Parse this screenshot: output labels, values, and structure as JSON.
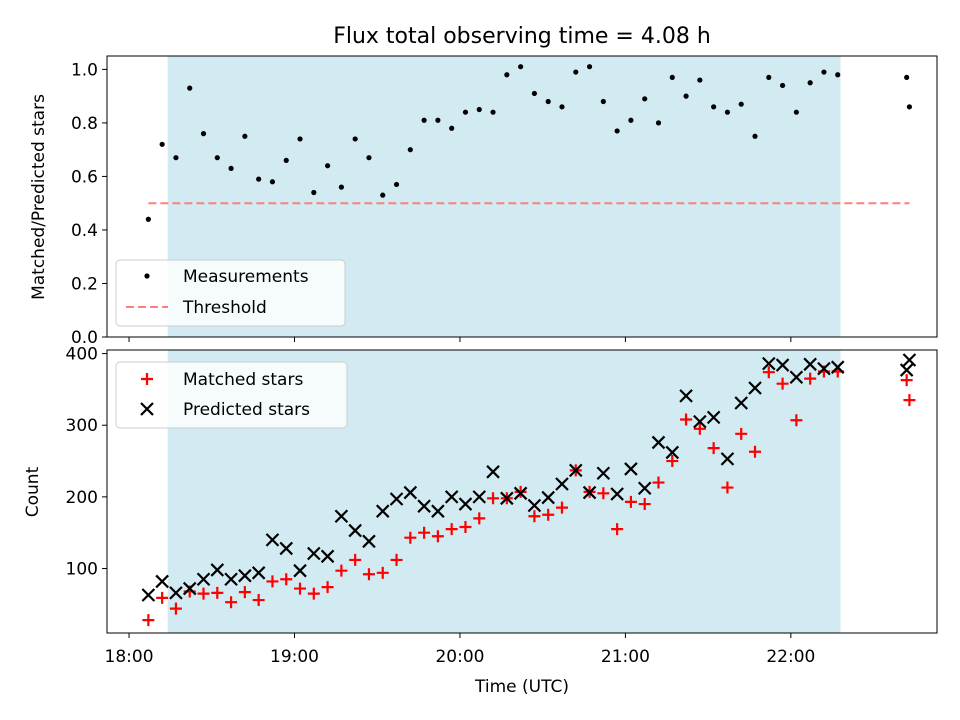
{
  "chart_data": [
    {
      "type": "scatter",
      "title": "Flux total observing time = 4.08 h",
      "ylabel": "Matched/Predicted stars",
      "ylim": [
        0,
        1.05
      ],
      "y_ticks": [
        0.0,
        0.2,
        0.4,
        0.6,
        0.8,
        1.0
      ],
      "y_tick_labels": [
        "0.0",
        "0.2",
        "0.4",
        "0.6",
        "0.8",
        "1.0"
      ],
      "legend": {
        "placement": "lower-left",
        "entries": [
          "Measurements",
          "Threshold"
        ]
      },
      "shaded_interval": [
        "18:14",
        "22:18"
      ],
      "series": [
        {
          "name": "Measurements",
          "color": "#000000",
          "marker": "dot",
          "points": [
            [
              "18:07",
              0.44
            ],
            [
              "18:12",
              0.72
            ],
            [
              "18:17",
              0.67
            ],
            [
              "18:22",
              0.93
            ],
            [
              "18:27",
              0.76
            ],
            [
              "18:32",
              0.67
            ],
            [
              "18:37",
              0.63
            ],
            [
              "18:42",
              0.75
            ],
            [
              "18:47",
              0.59
            ],
            [
              "18:52",
              0.58
            ],
            [
              "18:57",
              0.66
            ],
            [
              "19:02",
              0.74
            ],
            [
              "19:07",
              0.54
            ],
            [
              "19:12",
              0.64
            ],
            [
              "19:17",
              0.56
            ],
            [
              "19:22",
              0.74
            ],
            [
              "19:27",
              0.67
            ],
            [
              "19:32",
              0.53
            ],
            [
              "19:37",
              0.57
            ],
            [
              "19:42",
              0.7
            ],
            [
              "19:47",
              0.81
            ],
            [
              "19:52",
              0.81
            ],
            [
              "19:57",
              0.78
            ],
            [
              "20:02",
              0.84
            ],
            [
              "20:07",
              0.85
            ],
            [
              "20:12",
              0.84
            ],
            [
              "20:17",
              0.98
            ],
            [
              "20:22",
              1.01
            ],
            [
              "20:27",
              0.91
            ],
            [
              "20:32",
              0.88
            ],
            [
              "20:37",
              0.86
            ],
            [
              "20:42",
              0.99
            ],
            [
              "20:47",
              1.01
            ],
            [
              "20:52",
              0.88
            ],
            [
              "20:57",
              0.77
            ],
            [
              "21:02",
              0.81
            ],
            [
              "21:07",
              0.89
            ],
            [
              "21:12",
              0.8
            ],
            [
              "21:17",
              0.97
            ],
            [
              "21:22",
              0.9
            ],
            [
              "21:27",
              0.96
            ],
            [
              "21:32",
              0.86
            ],
            [
              "21:37",
              0.84
            ],
            [
              "21:42",
              0.87
            ],
            [
              "21:47",
              0.75
            ],
            [
              "21:52",
              0.97
            ],
            [
              "21:57",
              0.94
            ],
            [
              "22:02",
              0.84
            ],
            [
              "22:07",
              0.95
            ],
            [
              "22:12",
              0.99
            ],
            [
              "22:17",
              0.98
            ],
            [
              "22:42",
              0.97
            ],
            [
              "22:43",
              0.86
            ]
          ]
        },
        {
          "name": "Threshold",
          "color": "#ff7f7f",
          "style": "dashed",
          "points": [
            [
              "18:07",
              0.5
            ],
            [
              "22:43",
              0.5
            ]
          ]
        }
      ]
    },
    {
      "type": "scatter",
      "xlabel": "Time (UTC)",
      "ylabel": "Count",
      "ylim": [
        10,
        405
      ],
      "y_ticks": [
        100,
        200,
        300,
        400
      ],
      "y_tick_labels": [
        "100",
        "200",
        "300",
        "400"
      ],
      "x_ticks": [
        "18:00",
        "19:00",
        "20:00",
        "21:00",
        "22:00"
      ],
      "x_tick_labels": [
        "18:00",
        "19:00",
        "20:00",
        "21:00",
        "22:00"
      ],
      "xlim": [
        "17:52",
        "22:53"
      ],
      "legend": {
        "placement": "upper-left",
        "entries": [
          "Matched stars",
          "Predicted stars"
        ]
      },
      "shaded_interval": [
        "18:14",
        "22:18"
      ],
      "series": [
        {
          "name": "Matched stars",
          "color": "#ff0000",
          "marker": "plus",
          "points": [
            [
              "18:07",
              28
            ],
            [
              "18:12",
              59
            ],
            [
              "18:17",
              44
            ],
            [
              "18:22",
              68
            ],
            [
              "18:27",
              65
            ],
            [
              "18:32",
              66
            ],
            [
              "18:37",
              53
            ],
            [
              "18:42",
              67
            ],
            [
              "18:47",
              56
            ],
            [
              "18:52",
              82
            ],
            [
              "18:57",
              85
            ],
            [
              "19:02",
              72
            ],
            [
              "19:07",
              65
            ],
            [
              "19:12",
              74
            ],
            [
              "19:17",
              97
            ],
            [
              "19:22",
              112
            ],
            [
              "19:27",
              92
            ],
            [
              "19:32",
              94
            ],
            [
              "19:37",
              112
            ],
            [
              "19:42",
              143
            ],
            [
              "19:47",
              150
            ],
            [
              "19:52",
              145
            ],
            [
              "19:57",
              155
            ],
            [
              "20:02",
              158
            ],
            [
              "20:07",
              170
            ],
            [
              "20:12",
              198
            ],
            [
              "20:17",
              198
            ],
            [
              "20:22",
              207
            ],
            [
              "20:27",
              173
            ],
            [
              "20:32",
              175
            ],
            [
              "20:37",
              185
            ],
            [
              "20:42",
              237
            ],
            [
              "20:47",
              207
            ],
            [
              "20:52",
              205
            ],
            [
              "20:57",
              155
            ],
            [
              "21:02",
              193
            ],
            [
              "21:07",
              190
            ],
            [
              "21:12",
              220
            ],
            [
              "21:17",
              250
            ],
            [
              "21:22",
              308
            ],
            [
              "21:27",
              295
            ],
            [
              "21:32",
              268
            ],
            [
              "21:37",
              213
            ],
            [
              "21:42",
              288
            ],
            [
              "21:47",
              263
            ],
            [
              "21:52",
              374
            ],
            [
              "21:57",
              358
            ],
            [
              "22:02",
              307
            ],
            [
              "22:07",
              365
            ],
            [
              "22:12",
              375
            ],
            [
              "22:17",
              375
            ],
            [
              "22:42",
              363
            ],
            [
              "22:43",
              335
            ]
          ]
        },
        {
          "name": "Predicted stars",
          "color": "#000000",
          "marker": "x",
          "points": [
            [
              "18:07",
              63
            ],
            [
              "18:12",
              82
            ],
            [
              "18:17",
              66
            ],
            [
              "18:22",
              72
            ],
            [
              "18:27",
              85
            ],
            [
              "18:32",
              98
            ],
            [
              "18:37",
              85
            ],
            [
              "18:42",
              90
            ],
            [
              "18:47",
              94
            ],
            [
              "18:52",
              140
            ],
            [
              "18:57",
              128
            ],
            [
              "19:02",
              97
            ],
            [
              "19:07",
              121
            ],
            [
              "19:12",
              117
            ],
            [
              "19:17",
              173
            ],
            [
              "19:22",
              153
            ],
            [
              "19:27",
              138
            ],
            [
              "19:32",
              180
            ],
            [
              "19:37",
              197
            ],
            [
              "19:42",
              206
            ],
            [
              "19:47",
              187
            ],
            [
              "19:52",
              180
            ],
            [
              "19:57",
              200
            ],
            [
              "20:02",
              190
            ],
            [
              "20:07",
              200
            ],
            [
              "20:12",
              235
            ],
            [
              "20:17",
              198
            ],
            [
              "20:22",
              205
            ],
            [
              "20:27",
              188
            ],
            [
              "20:32",
              199
            ],
            [
              "20:37",
              218
            ],
            [
              "20:42",
              237
            ],
            [
              "20:47",
              206
            ],
            [
              "20:52",
              233
            ],
            [
              "20:57",
              204
            ],
            [
              "21:02",
              239
            ],
            [
              "21:07",
              212
            ],
            [
              "21:12",
              276
            ],
            [
              "21:17",
              262
            ],
            [
              "21:22",
              341
            ],
            [
              "21:27",
              305
            ],
            [
              "21:32",
              311
            ],
            [
              "21:37",
              253
            ],
            [
              "21:42",
              331
            ],
            [
              "21:47",
              352
            ],
            [
              "21:52",
              386
            ],
            [
              "21:57",
              384
            ],
            [
              "22:02",
              367
            ],
            [
              "22:07",
              385
            ],
            [
              "22:12",
              379
            ],
            [
              "22:17",
              381
            ],
            [
              "22:42",
              377
            ],
            [
              "22:43",
              391
            ]
          ]
        }
      ]
    }
  ]
}
